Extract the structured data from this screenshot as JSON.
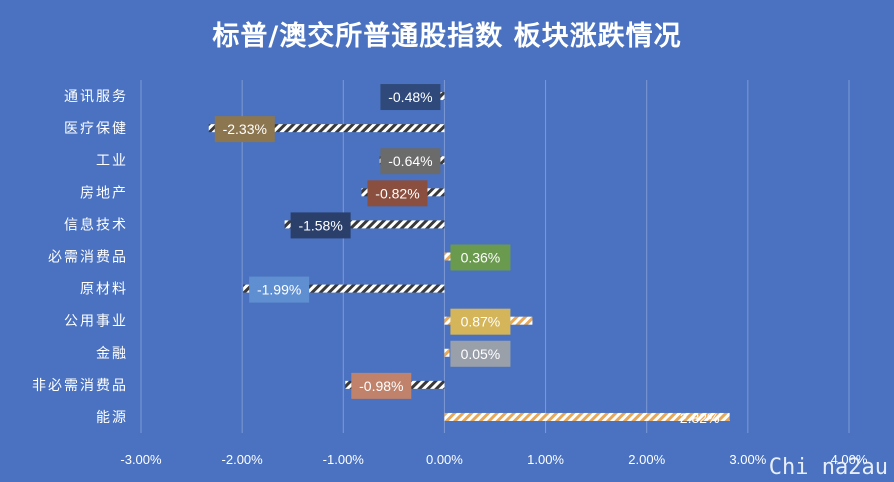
{
  "chart_data": {
    "type": "bar",
    "orientation": "horizontal",
    "title": "标普/澳交所普通股指数 板块涨跌情况",
    "categories": [
      "通讯服务",
      "医疗保健",
      "工业",
      "房地产",
      "信息技术",
      "必需消费品",
      "原材料",
      "公用事业",
      "金融",
      "非必需消费品",
      "能源"
    ],
    "values": [
      -0.48,
      -2.33,
      -0.64,
      -0.82,
      -1.58,
      0.36,
      -1.99,
      0.87,
      0.05,
      -0.98,
      2.82
    ],
    "value_labels": [
      "-0.48%",
      "-2.33%",
      "-0.64%",
      "-0.82%",
      "-1.58%",
      "0.36%",
      "-1.99%",
      "0.87%",
      "0.05%",
      "-0.98%",
      "2.82%"
    ],
    "label_colors": [
      "#2f4a7a",
      "#8c7650",
      "#6b6b6b",
      "#8a4f3e",
      "#2b3f6b",
      "#6a9a4e",
      "#5f8fd0",
      "#d4b55a",
      "#9aa0aa",
      "#c0826a",
      "#4a72c0"
    ],
    "bar_pattern_colors": [
      "#ffffff",
      "#3a3a3a"
    ],
    "positive_bar_pattern_colors": [
      "#ffffff",
      "#e6a95a"
    ],
    "xlim": [
      -3,
      4
    ],
    "x_ticks": [
      -3,
      -2,
      -1,
      0,
      1,
      2,
      3,
      4
    ],
    "x_tick_labels": [
      "-3.00%",
      "-2.00%",
      "-1.00%",
      "0.00%",
      "1.00%",
      "2.00%",
      "3.00%",
      "4.00%"
    ],
    "grid": true,
    "xlabel": "",
    "ylabel": ""
  },
  "watermark": "Chi na2au",
  "colors": {
    "background": "#4a72c0",
    "grid": "#7f9ad4"
  }
}
